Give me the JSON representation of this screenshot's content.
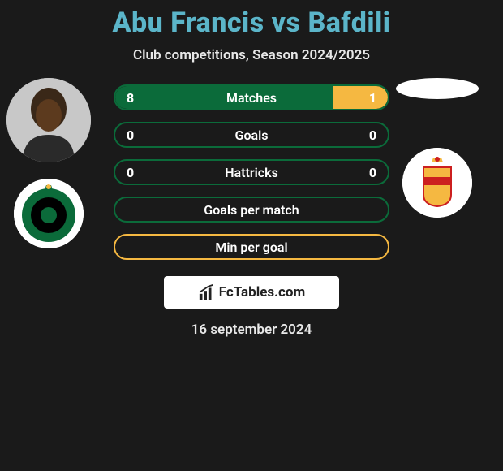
{
  "title": "Abu Francis vs Bafdili",
  "subtitle": "Club competitions, Season 2024/2025",
  "date": "16 september 2024",
  "colors": {
    "title": "#5bb5c9",
    "text": "#e8e8e8",
    "bg": "#1a1a1a",
    "green": "#0b6b3a",
    "yellow": "#f5b841",
    "white": "#ffffff"
  },
  "player_left": {
    "name": "Abu Francis",
    "club": "Cercle Brugge",
    "club_colors": {
      "bg": "#ffffff",
      "inner": "#0b6b3a",
      "center": "#000000"
    }
  },
  "player_right": {
    "name": "Bafdili",
    "club": "KV Mechelen",
    "club_colors": {
      "bg": "#ffffff",
      "stripe1": "#f5b841",
      "stripe2": "#cc1f1f"
    }
  },
  "stats": [
    {
      "label": "Matches",
      "left_val": "8",
      "right_val": "1",
      "left_pct": 80,
      "right_pct": 20,
      "left_color": "#0b6b3a",
      "right_color": "#f5b841",
      "border": "#0b6b3a"
    },
    {
      "label": "Goals",
      "left_val": "0",
      "right_val": "0",
      "left_pct": 0,
      "right_pct": 0,
      "left_color": "#0b6b3a",
      "right_color": "#f5b841",
      "border": "#0b6b3a"
    },
    {
      "label": "Hattricks",
      "left_val": "0",
      "right_val": "0",
      "left_pct": 0,
      "right_pct": 0,
      "left_color": "#0b6b3a",
      "right_color": "#f5b841",
      "border": "#0b6b3a"
    },
    {
      "label": "Goals per match",
      "left_val": "",
      "right_val": "",
      "left_pct": 0,
      "right_pct": 0,
      "left_color": "#0b6b3a",
      "right_color": "#f5b841",
      "border": "#0b6b3a"
    },
    {
      "label": "Min per goal",
      "left_val": "",
      "right_val": "",
      "left_pct": 0,
      "right_pct": 0,
      "left_color": "#0b6b3a",
      "right_color": "#f5b841",
      "border": "#f5b841"
    }
  ],
  "footer_brand": "FcTables.com"
}
